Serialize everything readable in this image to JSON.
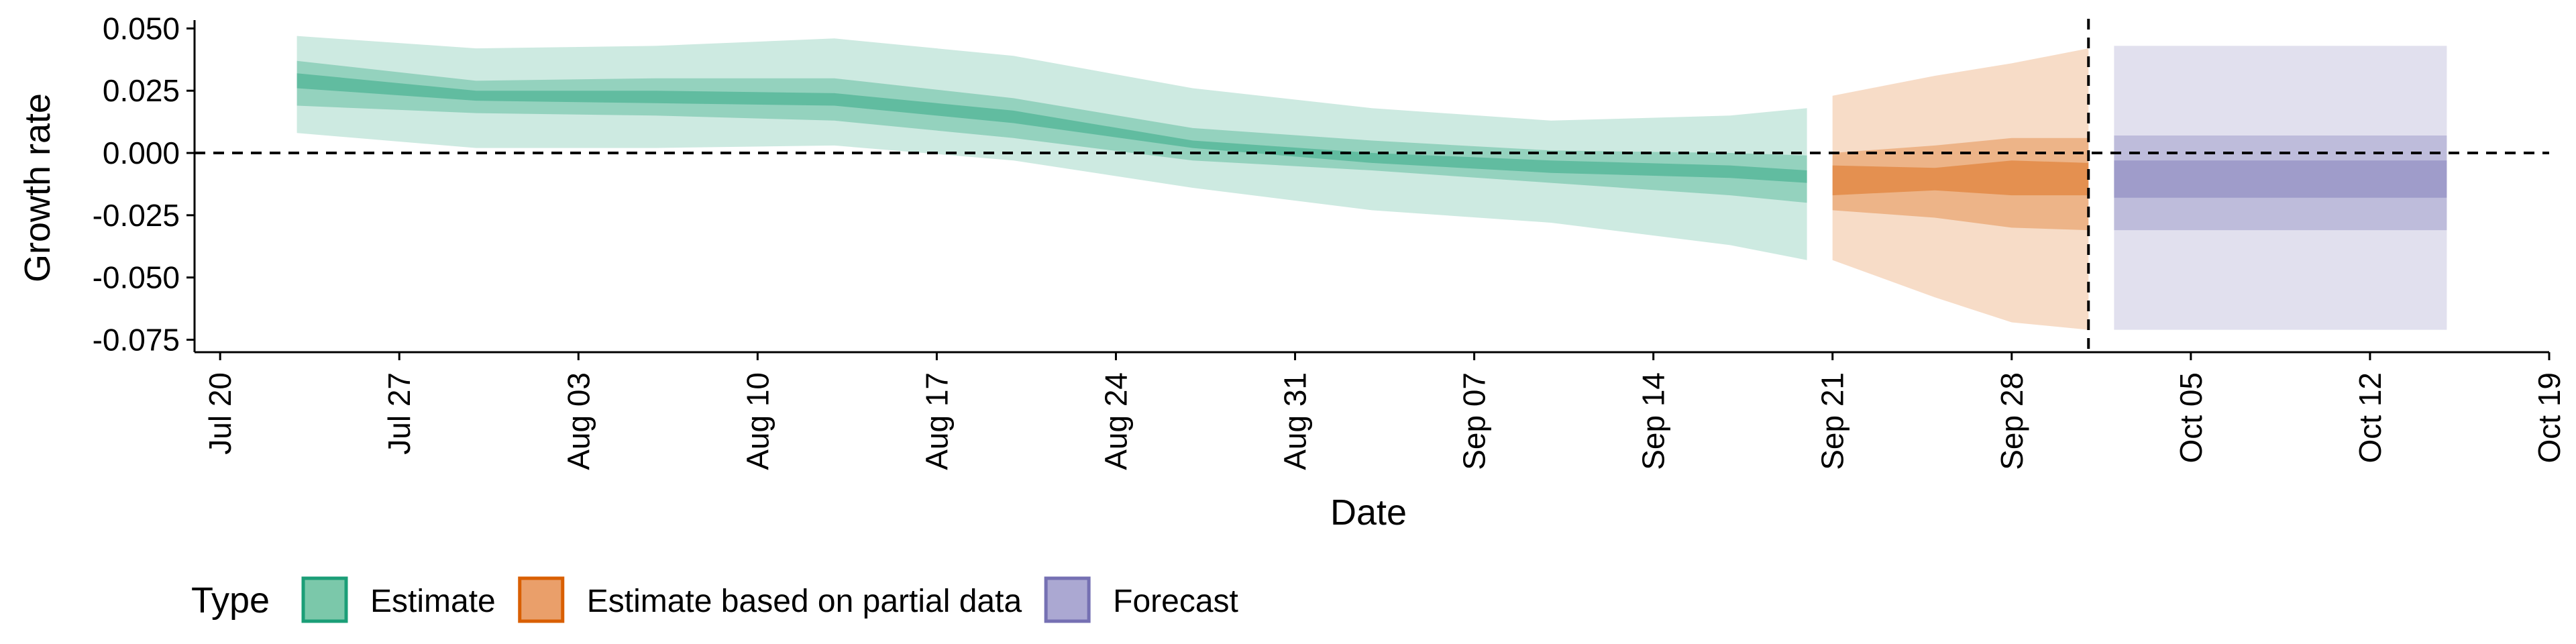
{
  "chart_data": {
    "type": "area",
    "xlabel": "Date",
    "ylabel": "Growth rate",
    "x_axis": {
      "type": "date",
      "range": [
        "2020-07-19",
        "2020-10-19"
      ],
      "ticks": [
        {
          "date": "2020-07-20",
          "label": "Jul 20"
        },
        {
          "date": "2020-07-27",
          "label": "Jul 27"
        },
        {
          "date": "2020-08-03",
          "label": "Aug 03"
        },
        {
          "date": "2020-08-10",
          "label": "Aug 10"
        },
        {
          "date": "2020-08-17",
          "label": "Aug 17"
        },
        {
          "date": "2020-08-24",
          "label": "Aug 24"
        },
        {
          "date": "2020-08-31",
          "label": "Aug 31"
        },
        {
          "date": "2020-09-07",
          "label": "Sep 07"
        },
        {
          "date": "2020-09-14",
          "label": "Sep 14"
        },
        {
          "date": "2020-09-21",
          "label": "Sep 21"
        },
        {
          "date": "2020-09-28",
          "label": "Sep 28"
        },
        {
          "date": "2020-10-05",
          "label": "Oct 05"
        },
        {
          "date": "2020-10-12",
          "label": "Oct 12"
        },
        {
          "date": "2020-10-19",
          "label": "Oct 19"
        }
      ]
    },
    "y_axis": {
      "range": [
        -0.08,
        0.052
      ],
      "ticks": [
        {
          "value": 0.05,
          "label": "0.050"
        },
        {
          "value": 0.025,
          "label": "0.025"
        },
        {
          "value": 0.0,
          "label": "0.000"
        },
        {
          "value": -0.025,
          "label": "-0.025"
        },
        {
          "value": -0.05,
          "label": "-0.050"
        },
        {
          "value": -0.075,
          "label": "-0.075"
        }
      ]
    },
    "reference_lines": {
      "horizontal_dashed_y": 0,
      "vertical_dashed_date": "2020-10-01"
    },
    "legend": {
      "title": "Type",
      "position": "bottom-left",
      "entries": [
        {
          "label": "Estimate",
          "fill": "#7bc8aa",
          "stroke": "#1b9e77"
        },
        {
          "label": "Estimate based on partial data",
          "fill": "#ea9f6a",
          "stroke": "#d95f02"
        },
        {
          "label": "Forecast",
          "fill": "#aba8d2",
          "stroke": "#7570b3"
        }
      ]
    },
    "series": [
      {
        "name": "Estimate",
        "color": "#1b9e77",
        "x": [
          "2020-07-23",
          "2020-07-30",
          "2020-08-06",
          "2020-08-13",
          "2020-08-20",
          "2020-08-27",
          "2020-09-03",
          "2020-09-10",
          "2020-09-17",
          "2020-09-20"
        ],
        "outer": [
          [
            0.008,
            0.047
          ],
          [
            0.002,
            0.042
          ],
          [
            0.002,
            0.043
          ],
          [
            0.003,
            0.046
          ],
          [
            -0.003,
            0.039
          ],
          [
            -0.014,
            0.026
          ],
          [
            -0.023,
            0.018
          ],
          [
            -0.028,
            0.013
          ],
          [
            -0.037,
            0.015
          ],
          [
            -0.043,
            0.018
          ]
        ],
        "middle": [
          [
            0.019,
            0.037
          ],
          [
            0.016,
            0.029
          ],
          [
            0.015,
            0.03
          ],
          [
            0.013,
            0.03
          ],
          [
            0.006,
            0.022
          ],
          [
            -0.003,
            0.01
          ],
          [
            -0.007,
            0.005
          ],
          [
            -0.012,
            0.001
          ],
          [
            -0.017,
            0.0
          ],
          [
            -0.02,
            -0.001
          ]
        ],
        "inner": [
          [
            0.026,
            0.032
          ],
          [
            0.021,
            0.025
          ],
          [
            0.02,
            0.025
          ],
          [
            0.019,
            0.024
          ],
          [
            0.012,
            0.017
          ],
          [
            0.002,
            0.005
          ],
          [
            -0.004,
            0.0
          ],
          [
            -0.008,
            -0.003
          ],
          [
            -0.01,
            -0.005
          ],
          [
            -0.012,
            -0.007
          ]
        ]
      },
      {
        "name": "Estimate based on partial data",
        "color": "#d95f02",
        "x": [
          "2020-09-21",
          "2020-09-25",
          "2020-09-28",
          "2020-10-01"
        ],
        "outer": [
          [
            -0.043,
            0.023
          ],
          [
            -0.058,
            0.031
          ],
          [
            -0.068,
            0.036
          ],
          [
            -0.071,
            0.042
          ]
        ],
        "middle": [
          [
            -0.023,
            0.0
          ],
          [
            -0.026,
            0.003
          ],
          [
            -0.03,
            0.006
          ],
          [
            -0.031,
            0.006
          ]
        ],
        "inner": [
          [
            -0.017,
            -0.005
          ],
          [
            -0.015,
            -0.006
          ],
          [
            -0.017,
            -0.003
          ],
          [
            -0.017,
            -0.004
          ]
        ]
      },
      {
        "name": "Forecast",
        "color": "#7570b3",
        "x": [
          "2020-10-02",
          "2020-10-15"
        ],
        "outer": [
          [
            -0.071,
            0.043
          ],
          [
            -0.071,
            0.043
          ]
        ],
        "middle": [
          [
            -0.031,
            0.007
          ],
          [
            -0.031,
            0.007
          ]
        ],
        "inner": [
          [
            -0.018,
            -0.003
          ],
          [
            -0.018,
            -0.003
          ]
        ]
      }
    ]
  }
}
